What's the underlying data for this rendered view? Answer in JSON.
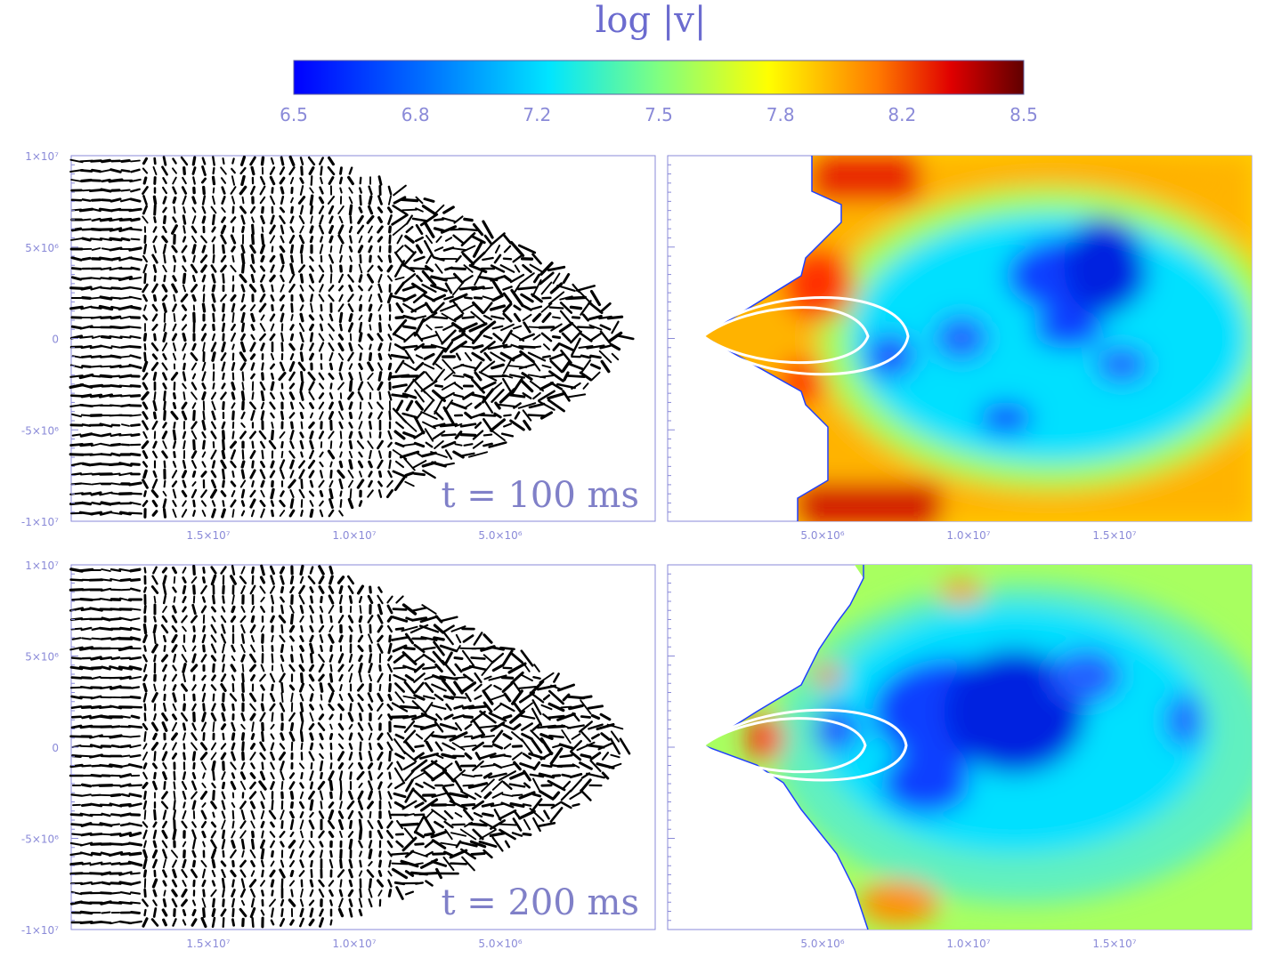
{
  "chart_data": {
    "type": "heatmap",
    "colorbar": {
      "title": "log |v|",
      "ticks": [
        "6.5",
        "6.8",
        "7.2",
        "7.5",
        "7.8",
        "8.2",
        "8.5"
      ],
      "range": [
        6.5,
        8.5
      ],
      "colormap": [
        "#0000ff",
        "#0080ff",
        "#00e5ff",
        "#80ff80",
        "#ffff00",
        "#ff8000",
        "#e00000",
        "#600000"
      ]
    },
    "panels": [
      {
        "id": "top-left",
        "kind": "velocity-vectors",
        "time_label": "t = 100 ms",
        "x_ticks": [
          "1.5×10⁷",
          "1.0×10⁷",
          "5.0×10⁶"
        ],
        "y_ticks": [
          "1×10⁷",
          "5×10⁶",
          "0",
          "-5×10⁶",
          "-1×10⁷"
        ]
      },
      {
        "id": "top-right",
        "kind": "speed-map",
        "x_ticks": [
          "5.0×10⁶",
          "1.0×10⁷",
          "1.5×10⁷"
        ]
      },
      {
        "id": "bottom-left",
        "kind": "velocity-vectors",
        "time_label": "t = 200 ms",
        "x_ticks": [
          "1.5×10⁷",
          "1.0×10⁷",
          "5.0×10⁶"
        ],
        "y_ticks": [
          "1×10⁷",
          "5×10⁶",
          "0",
          "-5×10⁶",
          "-1×10⁷"
        ]
      },
      {
        "id": "bottom-right",
        "kind": "speed-map",
        "x_ticks": [
          "5.0×10⁶",
          "1.0×10⁷",
          "1.5×10⁷"
        ]
      }
    ]
  }
}
